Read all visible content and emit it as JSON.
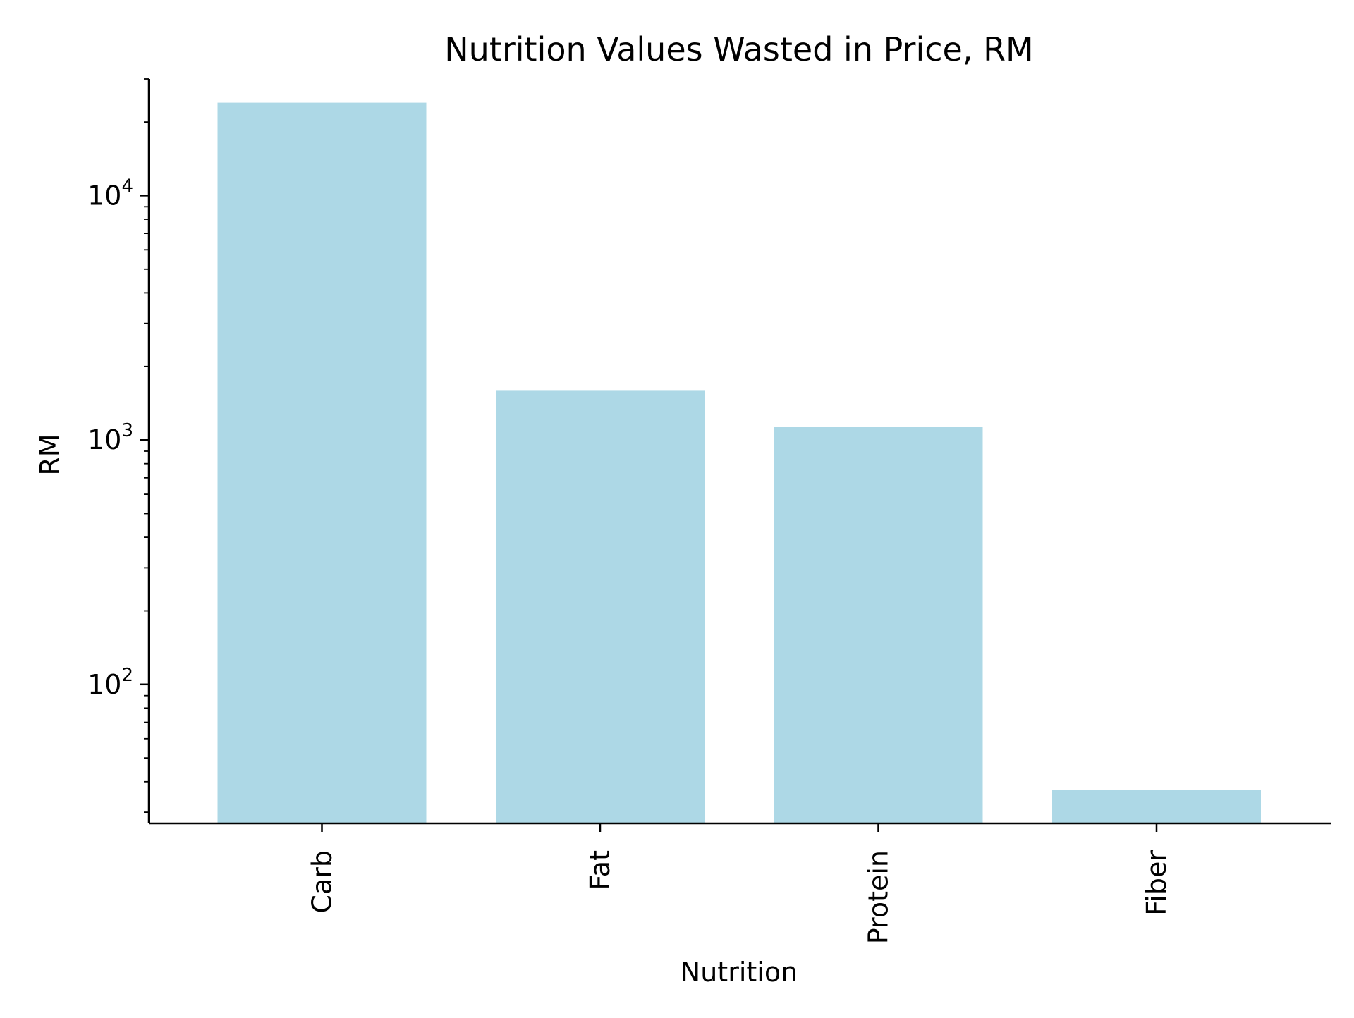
{
  "chart_data": {
    "type": "bar",
    "title": "Nutrition Values Wasted in Price, RM",
    "xlabel": "Nutrition",
    "ylabel": "RM",
    "yscale": "log",
    "ylim": [
      27,
      30000
    ],
    "yticks": [
      100,
      1000,
      10000
    ],
    "ytick_labels": [
      {
        "base": "10",
        "exp": "2"
      },
      {
        "base": "10",
        "exp": "3"
      },
      {
        "base": "10",
        "exp": "4"
      }
    ],
    "categories": [
      "Carb",
      "Fat",
      "Protein",
      "Fiber"
    ],
    "values": [
      24000,
      1600,
      1130,
      37
    ],
    "bar_color": "#add8e6",
    "grid": false,
    "x_tick_rotation": "vertical"
  }
}
